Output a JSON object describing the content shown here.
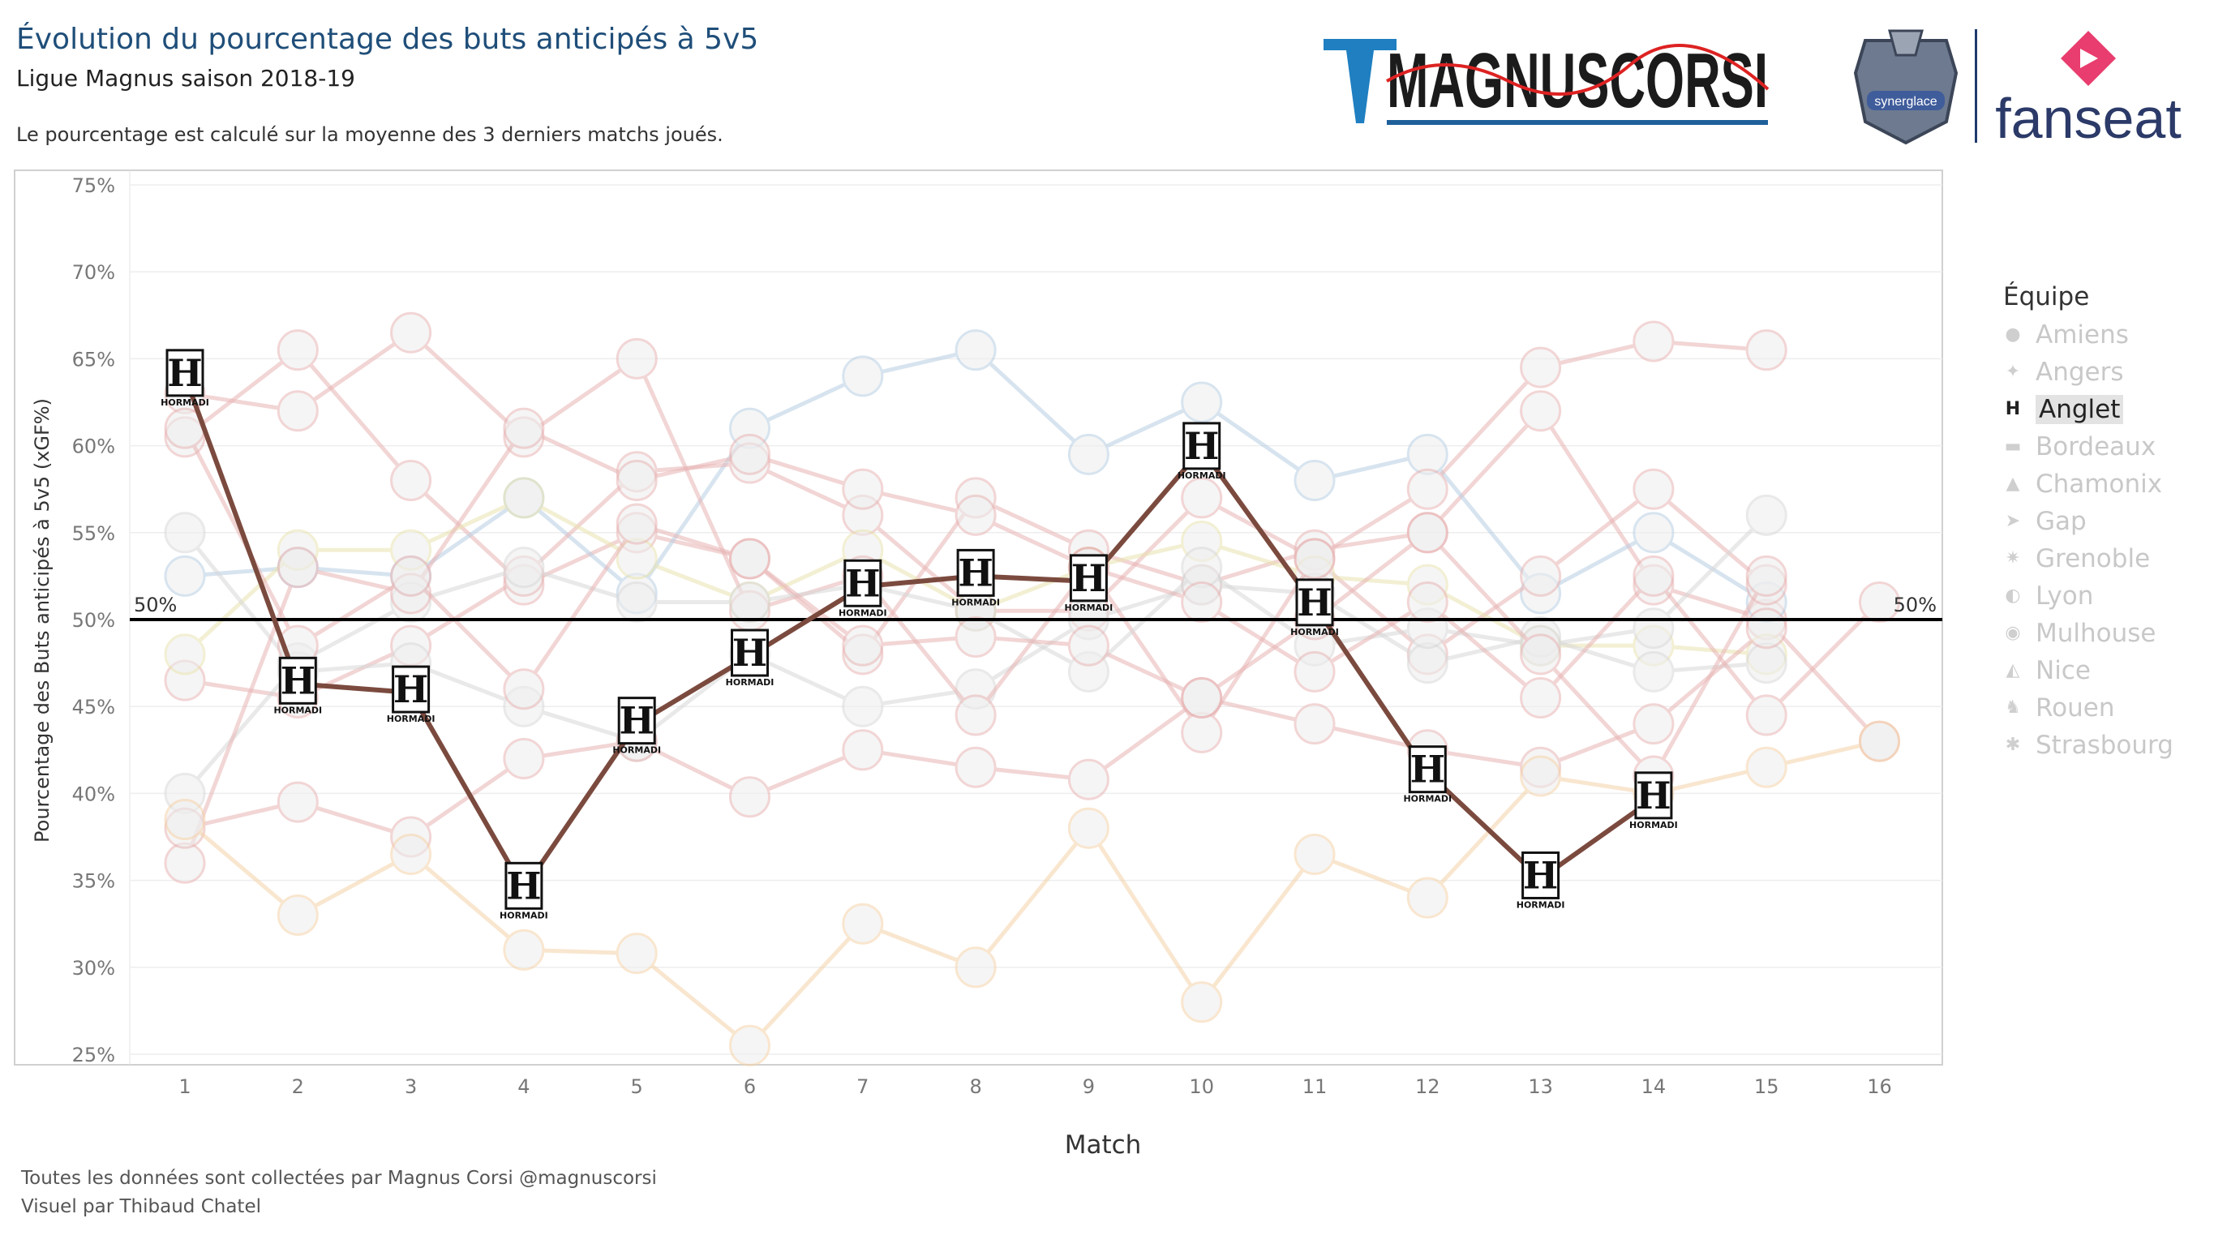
{
  "header": {
    "title": "Évolution du pourcentage des buts anticipés à 5v5",
    "subtitle": "Ligue Magnus saison 2018-19",
    "note": "Le pourcentage est calculé sur la moyenne des 3 derniers matchs joués."
  },
  "brand": {
    "name": "MAGNUSCORSI",
    "partner": "fanseat",
    "crest_small": "synerglace"
  },
  "footer": {
    "line1": "Toutes les données sont collectées par Magnus Corsi @magnuscorsi",
    "line2": "Visuel par Thibaud Chatel"
  },
  "colors": {
    "highlight": "#7b4a3e",
    "title": "#1f4e79",
    "reference": "#000000",
    "faded": "#cccccc"
  },
  "legend": {
    "title": "Équipe",
    "items": [
      {
        "label": "Amiens",
        "icon": "amiens-logo-icon",
        "active": false
      },
      {
        "label": "Angers",
        "icon": "angers-logo-icon",
        "active": false
      },
      {
        "label": "Anglet",
        "icon": "anglet-logo-icon",
        "active": true
      },
      {
        "label": "Bordeaux",
        "icon": "bordeaux-logo-icon",
        "active": false
      },
      {
        "label": "Chamonix",
        "icon": "chamonix-logo-icon",
        "active": false
      },
      {
        "label": "Gap",
        "icon": "gap-logo-icon",
        "active": false
      },
      {
        "label": "Grenoble",
        "icon": "grenoble-logo-icon",
        "active": false
      },
      {
        "label": "Lyon",
        "icon": "lyon-logo-icon",
        "active": false
      },
      {
        "label": "Mulhouse",
        "icon": "mulhouse-logo-icon",
        "active": false
      },
      {
        "label": "Nice",
        "icon": "nice-logo-icon",
        "active": false
      },
      {
        "label": "Rouen",
        "icon": "rouen-logo-icon",
        "active": false
      },
      {
        "label": "Strasbourg",
        "icon": "strasbourg-logo-icon",
        "active": false
      }
    ]
  },
  "chart_data": {
    "type": "line",
    "xlabel": "Match",
    "ylabel": "Pourcentage des Buts anticipés à 5v5 (xGF%)",
    "x": [
      1,
      2,
      3,
      4,
      5,
      6,
      7,
      8,
      9,
      10,
      11,
      12,
      13,
      14,
      15,
      16
    ],
    "ylim": [
      25,
      75
    ],
    "yticks": [
      "25%",
      "30%",
      "35%",
      "40%",
      "45%",
      "50%",
      "55%",
      "60%",
      "65%",
      "70%",
      "75%"
    ],
    "reference_line": {
      "value": 50,
      "label_left": "50%",
      "label_right": "50%"
    },
    "grid": true,
    "legend_position": "right",
    "series": [
      {
        "name": "Anglet",
        "marker_text": "H",
        "marker_sub": "HORMADI",
        "highlight": true,
        "color": "#7b4a3e",
        "values": [
          64.0,
          46.3,
          45.8,
          34.5,
          44.0,
          47.9,
          51.9,
          52.5,
          52.2,
          59.8,
          50.8,
          41.2,
          35.1,
          39.7,
          null,
          null
        ]
      },
      {
        "name": "Amiens",
        "color": "#e8b4b4",
        "values": [
          60.5,
          65.5,
          58.0,
          52.0,
          55.0,
          53.5,
          48.0,
          57.0,
          54.0,
          52.0,
          54.0,
          55.0,
          62.0,
          52.0,
          50.0,
          43.0
        ]
      },
      {
        "name": "Angers",
        "color": "#b8cfe3",
        "values": [
          52.5,
          53.0,
          52.5,
          57.0,
          51.5,
          61.0,
          64.0,
          65.5,
          59.5,
          62.5,
          58.0,
          59.5,
          51.5,
          55.0,
          51.0,
          null
        ]
      },
      {
        "name": "Bordeaux",
        "color": "#e8b4b4",
        "values": [
          46.5,
          45.5,
          48.5,
          52.5,
          58.5,
          59.0,
          56.0,
          50.5,
          50.5,
          57.0,
          53.5,
          48.0,
          52.5,
          57.5,
          52.0,
          null
        ]
      },
      {
        "name": "Chamonix",
        "color": "#e9e3b0",
        "values": [
          48.0,
          54.0,
          54.0,
          57.0,
          53.5,
          51.0,
          54.0,
          50.5,
          53.0,
          54.5,
          52.5,
          52.0,
          48.5,
          48.5,
          48.0,
          null
        ]
      },
      {
        "name": "Gap",
        "color": "#d8d8d8",
        "values": [
          55.0,
          47.0,
          47.5,
          45.0,
          43.0,
          48.0,
          45.0,
          46.0,
          50.0,
          52.0,
          51.5,
          47.5,
          49.0,
          47.0,
          47.5,
          null
        ]
      },
      {
        "name": "Grenoble",
        "color": "#e8b4b4",
        "values": [
          63.0,
          62.0,
          66.5,
          60.5,
          65.0,
          50.5,
          52.5,
          44.5,
          53.0,
          43.5,
          53.5,
          57.5,
          64.5,
          66.0,
          65.5,
          null
        ]
      },
      {
        "name": "Lyon",
        "color": "#d8d8d8",
        "values": [
          40.0,
          47.5,
          51.0,
          53.0,
          51.0,
          51.0,
          52.0,
          50.5,
          47.0,
          53.0,
          48.5,
          49.5,
          48.5,
          49.5,
          56.0,
          null
        ]
      },
      {
        "name": "Mulhouse",
        "color": "#e8b4b4",
        "values": [
          36.0,
          53.0,
          51.5,
          61.0,
          58.0,
          59.5,
          57.5,
          56.0,
          53.0,
          51.0,
          47.0,
          51.0,
          45.5,
          52.5,
          44.5,
          51.0
        ]
      },
      {
        "name": "Nice",
        "color": "#e8b4b4",
        "values": [
          38.0,
          39.5,
          37.5,
          42.0,
          43.0,
          39.8,
          42.5,
          41.5,
          40.8,
          45.5,
          44.0,
          42.5,
          41.5,
          44.0,
          49.5,
          null
        ]
      },
      {
        "name": "Rouen",
        "color": "#e8b4b4",
        "values": [
          61.0,
          48.5,
          52.5,
          46.0,
          55.5,
          53.5,
          48.5,
          49.0,
          48.5,
          45.5,
          50.0,
          55.0,
          48.0,
          41.0,
          52.5,
          null
        ]
      },
      {
        "name": "Strasbourg",
        "color": "#f5d2a8",
        "values": [
          38.5,
          33.0,
          36.5,
          31.0,
          30.8,
          25.5,
          32.5,
          30.0,
          38.0,
          28.0,
          36.5,
          34.0,
          41.0,
          40.0,
          41.5,
          43.0
        ]
      }
    ]
  }
}
